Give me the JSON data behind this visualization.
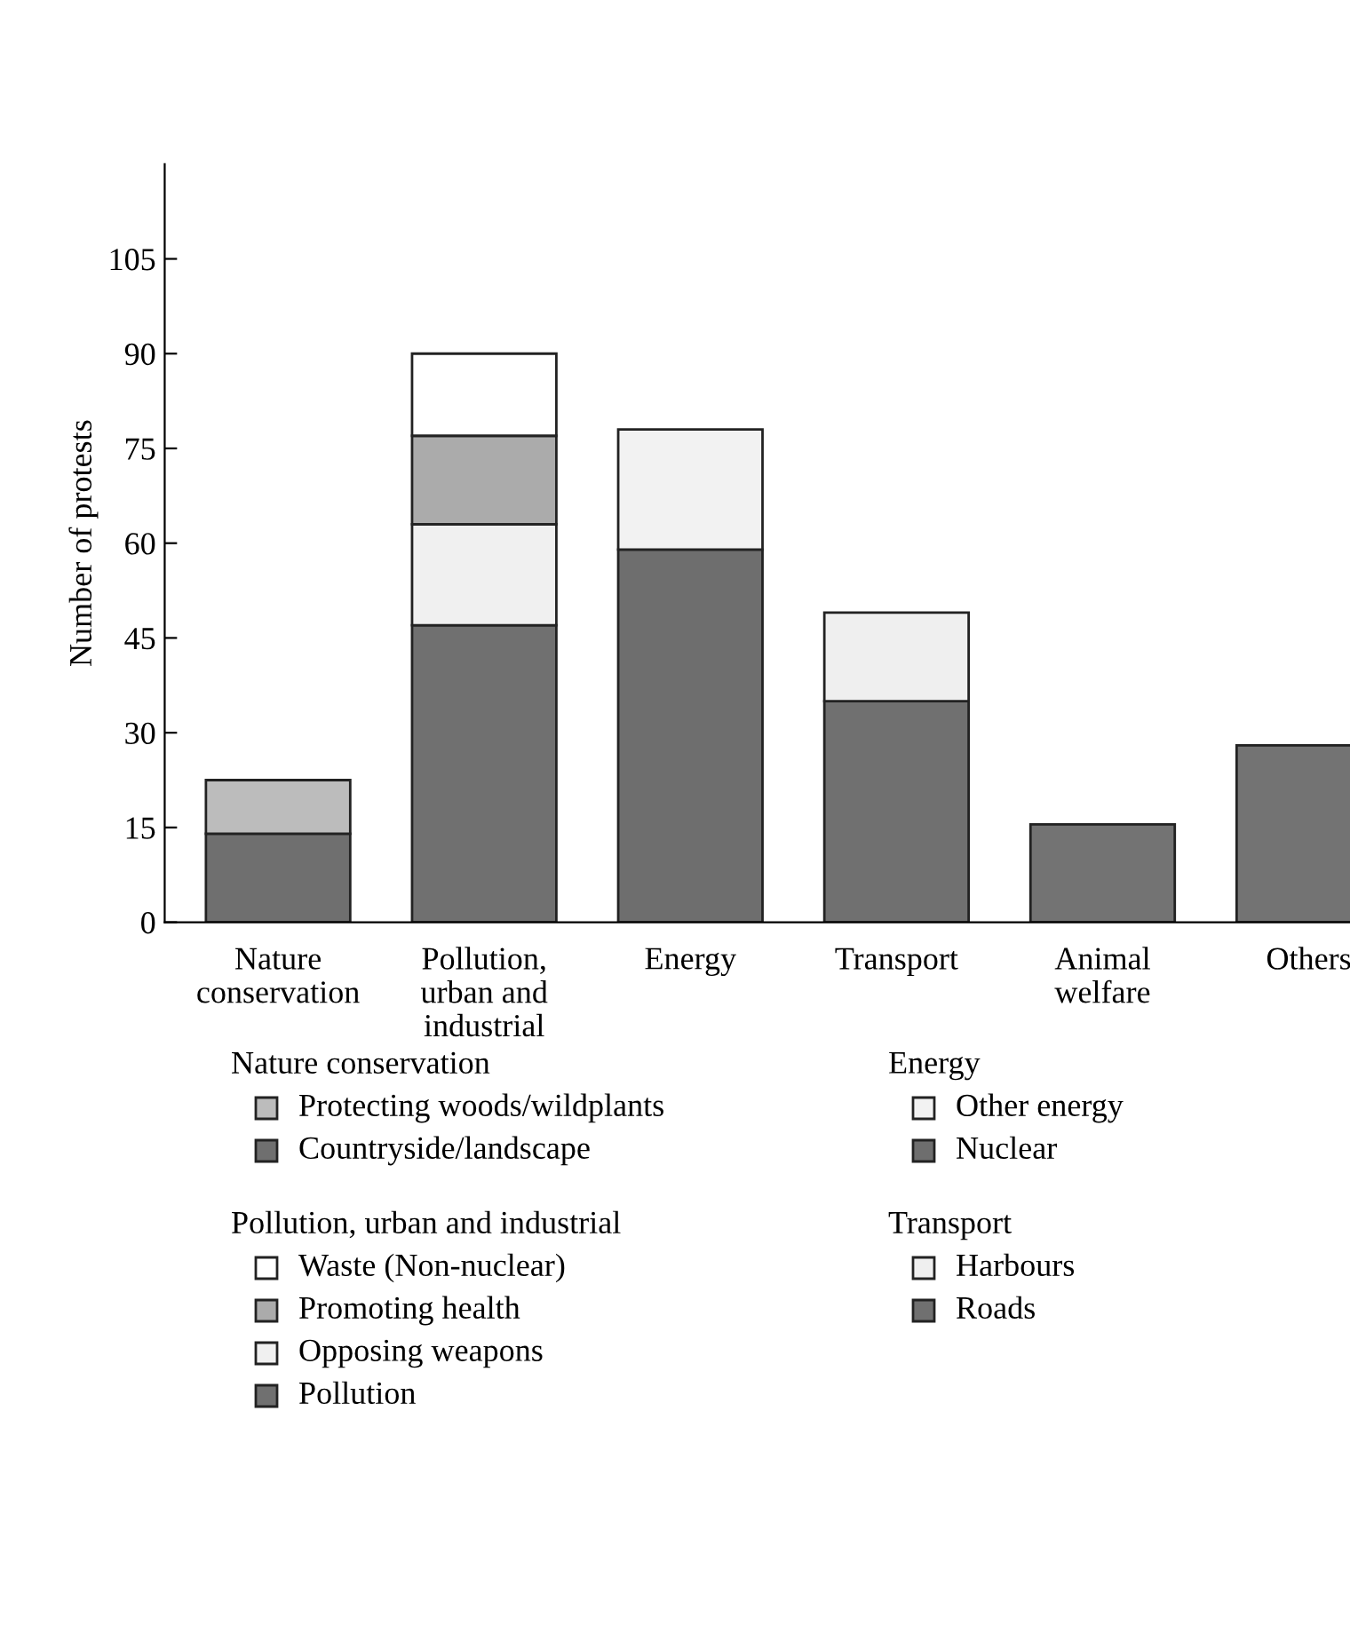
{
  "chart_data": {
    "type": "bar",
    "stacked": true,
    "ylabel": "Number of protests",
    "categories": [
      "Nature\nconservation",
      "Pollution,\nurban and\nindustrial",
      "Energy",
      "Transport",
      "Animal\nwelfare",
      "Others"
    ],
    "ylim": [
      0,
      120
    ],
    "yticks": [
      0,
      15,
      30,
      45,
      60,
      75,
      90,
      105
    ],
    "grid": false,
    "legend": "bottom",
    "series": [
      {
        "name": "Countryside/landscape",
        "color": "#6f6f6f",
        "values": [
          14,
          null,
          null,
          null,
          null,
          null
        ]
      },
      {
        "name": "Protecting woods/wildplants",
        "color": "#bcbcbc",
        "values": [
          8.5,
          null,
          null,
          null,
          null,
          null
        ]
      },
      {
        "name": "Pollution",
        "color": "#707070",
        "values": [
          null,
          47,
          null,
          null,
          null,
          null
        ]
      },
      {
        "name": "Opposing weapons",
        "color": "#f0f0f0",
        "values": [
          null,
          16,
          null,
          null,
          null,
          null
        ]
      },
      {
        "name": "Promoting health",
        "color": "#ababab",
        "values": [
          null,
          14,
          null,
          null,
          null,
          null
        ]
      },
      {
        "name": "Waste (Non-nuclear)",
        "color": "#ffffff",
        "values": [
          null,
          13,
          null,
          null,
          null,
          null
        ]
      },
      {
        "name": "Nuclear",
        "color": "#6e6e6e",
        "values": [
          null,
          null,
          59,
          null,
          null,
          null
        ]
      },
      {
        "name": "Other energy",
        "color": "#f2f2f2",
        "values": [
          null,
          null,
          19,
          null,
          null,
          null
        ]
      },
      {
        "name": "Roads",
        "color": "#707070",
        "values": [
          null,
          null,
          null,
          35,
          null,
          null
        ]
      },
      {
        "name": "Harbours",
        "color": "#efefef",
        "values": [
          null,
          null,
          null,
          14,
          null,
          null
        ]
      },
      {
        "color": "#737373",
        "values": [
          null,
          null,
          null,
          null,
          15.5,
          28
        ]
      }
    ]
  }
}
